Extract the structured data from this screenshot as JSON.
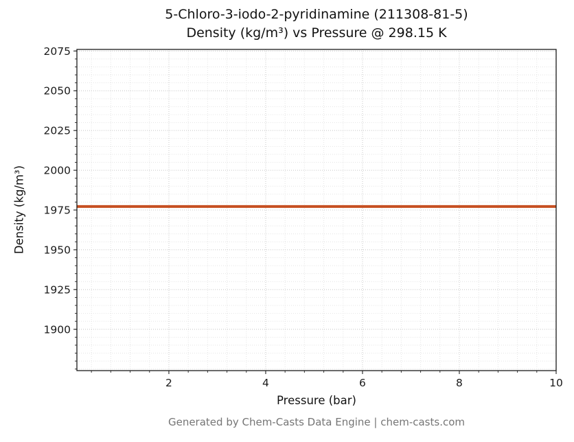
{
  "title": {
    "line1": "5-Chloro-3-iodo-2-pyridinamine (211308-81-5)",
    "line2": "Density (kg/m³) vs Pressure @ 298.15 K"
  },
  "footer": "Generated by Chem-Casts Data Engine | chem-casts.com",
  "chart_data": {
    "type": "line",
    "title": "5-Chloro-3-iodo-2-pyridinamine (211308-81-5) — Density (kg/m³) vs Pressure @ 298.15 K",
    "xlabel": "Pressure (bar)",
    "ylabel": "Density (kg/m³)",
    "xlim": [
      0.1,
      10
    ],
    "ylim": [
      1874,
      2076
    ],
    "x_ticks": [
      2,
      4,
      6,
      8,
      10
    ],
    "y_ticks": [
      1900,
      1925,
      1950,
      1975,
      2000,
      2025,
      2050,
      2075
    ],
    "x_minor_step": 0.4,
    "y_minor_step": 5,
    "grid": true,
    "legend_visible": false,
    "series": [
      {
        "name": "Density @ 298.15 K",
        "color": "#c64f21",
        "x": [
          0.1,
          10
        ],
        "y": [
          1977.2,
          1977.2
        ]
      }
    ],
    "colors": {
      "major_grid": "#c9c9c9",
      "minor_grid": "#e4e4e4",
      "axis_border": "#1a1a1a",
      "tick": "#333333"
    }
  }
}
